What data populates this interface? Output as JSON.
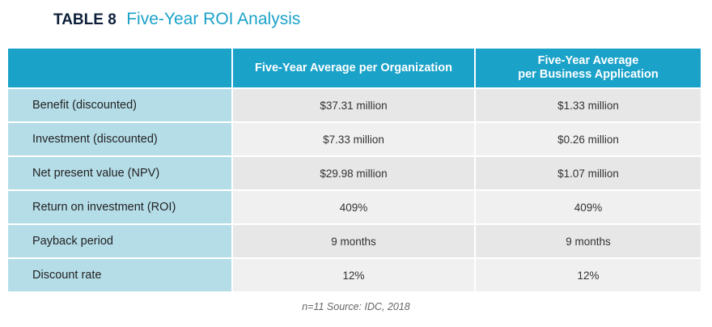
{
  "title": {
    "label": "TABLE 8",
    "text": "Five-Year ROI Analysis"
  },
  "table": {
    "headers": [
      "",
      "Five-Year Average per Organization",
      "Five-Year Average per Business Application"
    ],
    "header_lines": {
      "col2_line1": "Five-Year Average",
      "col2_line2": "per Business Application"
    },
    "rows": [
      {
        "label": "Benefit (discounted)",
        "org": "$37.31 million",
        "app": "$1.33 million"
      },
      {
        "label": "Investment (discounted)",
        "org": "$7.33 million",
        "app": "$0.26 million"
      },
      {
        "label": "Net present value (NPV)",
        "org": "$29.98 million",
        "app": "$1.07 million"
      },
      {
        "label": "Return on investment (ROI)",
        "org": "409%",
        "app": "409%"
      },
      {
        "label": "Payback period",
        "org": "9 months",
        "app": "9 months"
      },
      {
        "label": "Discount rate",
        "org": "12%",
        "app": "12%"
      }
    ]
  },
  "source": "n=11  Source: IDC, 2018",
  "colors": {
    "accent": "#1ba2c9",
    "title_dark": "#0d1f3a",
    "label_cell": "#b5dde8",
    "value_cell": "#e7e7e7"
  }
}
